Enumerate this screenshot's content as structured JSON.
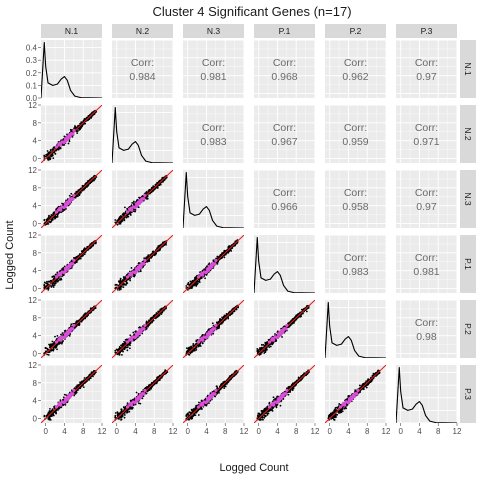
{
  "chart_data": {
    "type": "scatter",
    "title": "Cluster 4 Significant Genes (n=17)",
    "xlabel": "Logged Count",
    "ylabel": "Logged Count",
    "samples": [
      "N.1",
      "N.2",
      "N.3",
      "P.1",
      "P.2",
      "P.3"
    ],
    "axis_range": [
      -1,
      12
    ],
    "axis_ticks": [
      0,
      4,
      8,
      12
    ],
    "density_axis": {
      "ticks": [
        0.0,
        0.1,
        0.2,
        0.3,
        0.4
      ],
      "range": [
        0,
        0.46
      ]
    },
    "corr_label": "Corr:",
    "correlations": [
      {
        "row": "N.1",
        "col": "N.2",
        "value": "0.984"
      },
      {
        "row": "N.1",
        "col": "N.3",
        "value": "0.981"
      },
      {
        "row": "N.1",
        "col": "P.1",
        "value": "0.968"
      },
      {
        "row": "N.1",
        "col": "P.2",
        "value": "0.962"
      },
      {
        "row": "N.1",
        "col": "P.3",
        "value": "0.97"
      },
      {
        "row": "N.2",
        "col": "N.3",
        "value": "0.983"
      },
      {
        "row": "N.2",
        "col": "P.1",
        "value": "0.967"
      },
      {
        "row": "N.2",
        "col": "P.2",
        "value": "0.959"
      },
      {
        "row": "N.2",
        "col": "P.3",
        "value": "0.971"
      },
      {
        "row": "N.3",
        "col": "P.1",
        "value": "0.966"
      },
      {
        "row": "N.3",
        "col": "P.2",
        "value": "0.958"
      },
      {
        "row": "N.3",
        "col": "P.3",
        "value": "0.97"
      },
      {
        "row": "P.1",
        "col": "P.2",
        "value": "0.983"
      },
      {
        "row": "P.1",
        "col": "P.3",
        "value": "0.981"
      },
      {
        "row": "P.2",
        "col": "P.3",
        "value": "0.98"
      }
    ],
    "density_curve": [
      [
        -1,
        0.0
      ],
      [
        -0.3,
        0.44
      ],
      [
        0,
        0.25
      ],
      [
        0.5,
        0.12
      ],
      [
        1.5,
        0.1
      ],
      [
        2.5,
        0.11
      ],
      [
        3.3,
        0.15
      ],
      [
        4.0,
        0.17
      ],
      [
        4.6,
        0.14
      ],
      [
        5.3,
        0.06
      ],
      [
        6.2,
        0.015
      ],
      [
        7.5,
        0.003
      ],
      [
        12,
        0.0
      ]
    ],
    "density_curves": [
      {
        "sample": "N.1",
        "points": [
          [
            -1,
            0.0
          ],
          [
            -0.3,
            0.44
          ],
          [
            0,
            0.25
          ],
          [
            0.5,
            0.12
          ],
          [
            1.5,
            0.1
          ],
          [
            2.5,
            0.11
          ],
          [
            3.3,
            0.15
          ],
          [
            4.0,
            0.17
          ],
          [
            4.6,
            0.14
          ],
          [
            5.3,
            0.06
          ],
          [
            6.2,
            0.015
          ],
          [
            7.5,
            0.003
          ],
          [
            12,
            0.0
          ]
        ]
      },
      {
        "sample": "N.2",
        "points": [
          [
            -1,
            0.0
          ],
          [
            -0.3,
            0.44
          ],
          [
            0,
            0.25
          ],
          [
            0.5,
            0.12
          ],
          [
            1.5,
            0.1
          ],
          [
            2.5,
            0.11
          ],
          [
            3.3,
            0.15
          ],
          [
            4.0,
            0.17
          ],
          [
            4.6,
            0.14
          ],
          [
            5.3,
            0.06
          ],
          [
            6.2,
            0.015
          ],
          [
            7.5,
            0.003
          ],
          [
            12,
            0.0
          ]
        ]
      },
      {
        "sample": "N.3",
        "points": [
          [
            -1,
            0.0
          ],
          [
            -0.3,
            0.44
          ],
          [
            0,
            0.25
          ],
          [
            0.5,
            0.12
          ],
          [
            1.5,
            0.1
          ],
          [
            2.5,
            0.11
          ],
          [
            3.3,
            0.15
          ],
          [
            4.0,
            0.17
          ],
          [
            4.6,
            0.14
          ],
          [
            5.3,
            0.06
          ],
          [
            6.2,
            0.015
          ],
          [
            7.5,
            0.003
          ],
          [
            12,
            0.0
          ]
        ]
      },
      {
        "sample": "P.1",
        "points": [
          [
            -1,
            0.0
          ],
          [
            -0.3,
            0.44
          ],
          [
            0,
            0.25
          ],
          [
            0.5,
            0.12
          ],
          [
            1.5,
            0.1
          ],
          [
            2.5,
            0.11
          ],
          [
            3.3,
            0.15
          ],
          [
            4.0,
            0.17
          ],
          [
            4.6,
            0.14
          ],
          [
            5.3,
            0.06
          ],
          [
            6.2,
            0.015
          ],
          [
            7.5,
            0.003
          ],
          [
            12,
            0.0
          ]
        ]
      },
      {
        "sample": "P.2",
        "points": [
          [
            -1,
            0.0
          ],
          [
            -0.3,
            0.44
          ],
          [
            0,
            0.25
          ],
          [
            0.5,
            0.12
          ],
          [
            1.5,
            0.1
          ],
          [
            2.5,
            0.11
          ],
          [
            3.3,
            0.15
          ],
          [
            4.0,
            0.17
          ],
          [
            4.6,
            0.14
          ],
          [
            5.3,
            0.06
          ],
          [
            6.2,
            0.015
          ],
          [
            7.5,
            0.003
          ],
          [
            12,
            0.0
          ]
        ]
      },
      {
        "sample": "P.3",
        "points": [
          [
            -1,
            0.0
          ],
          [
            -0.3,
            0.44
          ],
          [
            0,
            0.25
          ],
          [
            0.5,
            0.12
          ],
          [
            1.5,
            0.1
          ],
          [
            2.5,
            0.11
          ],
          [
            3.3,
            0.15
          ],
          [
            4.0,
            0.17
          ],
          [
            4.6,
            0.14
          ],
          [
            5.3,
            0.06
          ],
          [
            6.2,
            0.015
          ],
          [
            7.5,
            0.003
          ],
          [
            12,
            0.0
          ]
        ]
      }
    ],
    "reference_line": {
      "kind": "y = x",
      "color": "#e41a1c"
    },
    "highlight_points": [
      [
        2.3,
        2.6
      ],
      [
        2.8,
        3.1
      ],
      [
        3.2,
        3.0
      ],
      [
        3.5,
        3.7
      ],
      [
        3.9,
        3.6
      ],
      [
        4.2,
        4.4
      ],
      [
        4.4,
        4.1
      ],
      [
        4.6,
        4.8
      ],
      [
        4.8,
        4.5
      ],
      [
        5.0,
        5.2
      ],
      [
        5.2,
        4.9
      ],
      [
        5.5,
        5.6
      ],
      [
        5.8,
        5.5
      ],
      [
        6.0,
        6.3
      ],
      [
        3.0,
        3.4
      ],
      [
        4.1,
        3.8
      ],
      [
        5.3,
        5.4
      ]
    ],
    "colors": {
      "panel_background": "#ebebeb",
      "grid": "#ffffff",
      "strip": "#d9d9d9",
      "points": "#000000",
      "highlight": "#d94ed9",
      "reference": "#e41a1c",
      "density": "#000000",
      "corr_text": "#6b6b6b"
    },
    "grid": true,
    "legend": "none"
  }
}
